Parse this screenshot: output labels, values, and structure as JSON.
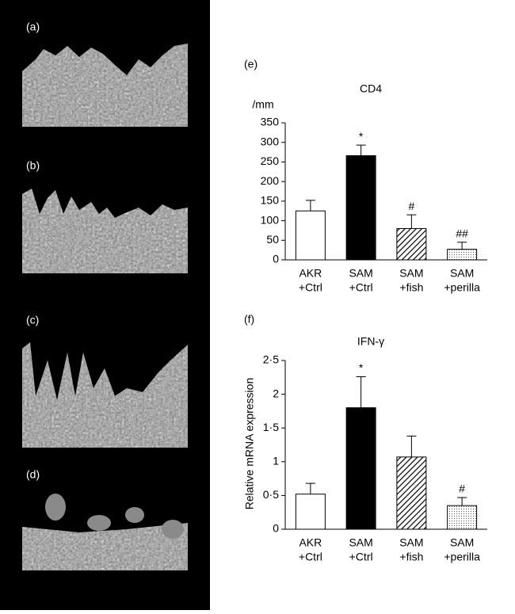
{
  "panels": {
    "labels": [
      "(a)",
      "(b)",
      "(c)",
      "(d)"
    ]
  },
  "chart_data": [
    {
      "type": "bar",
      "panel": "(e)",
      "title": "CD4",
      "y_label": "/mm",
      "categories": [
        [
          "AKR",
          "+Ctrl"
        ],
        [
          "SAM",
          "+Ctrl"
        ],
        [
          "SAM",
          "+fish"
        ],
        [
          "SAM",
          "+perilla"
        ]
      ],
      "values": [
        125,
        266,
        80,
        27
      ],
      "errors": [
        27,
        27,
        35,
        18
      ],
      "annotations": [
        "*",
        null,
        "#",
        "##"
      ],
      "annotation_on": [
        1,
        1,
        2,
        3
      ],
      "fills": [
        "white",
        "black",
        "hatch",
        "dots"
      ],
      "ylim": [
        0,
        350
      ],
      "yticks": [
        0,
        50,
        100,
        150,
        200,
        250,
        300,
        350
      ]
    },
    {
      "type": "bar",
      "panel": "(f)",
      "title": "IFN-γ",
      "y_label": "Relative mRNA expression",
      "categories": [
        [
          "AKR",
          "+Ctrl"
        ],
        [
          "SAM",
          "+Ctrl"
        ],
        [
          "SAM",
          "+fish"
        ],
        [
          "SAM",
          "+perilla"
        ]
      ],
      "values": [
        0.52,
        1.8,
        1.07,
        0.35
      ],
      "errors": [
        0.16,
        0.46,
        0.31,
        0.12
      ],
      "annotations": [
        "*",
        "#"
      ],
      "annotation_on": [
        1,
        3
      ],
      "fills": [
        "white",
        "black",
        "hatch",
        "dots"
      ],
      "ylim": [
        0,
        2.5
      ],
      "yticks": [
        0,
        {
          "value": 0.5,
          "label": "0·5"
        },
        1,
        {
          "value": 1.5,
          "label": "1·5"
        },
        2,
        {
          "value": 2.5,
          "label": "2·5"
        }
      ]
    }
  ]
}
